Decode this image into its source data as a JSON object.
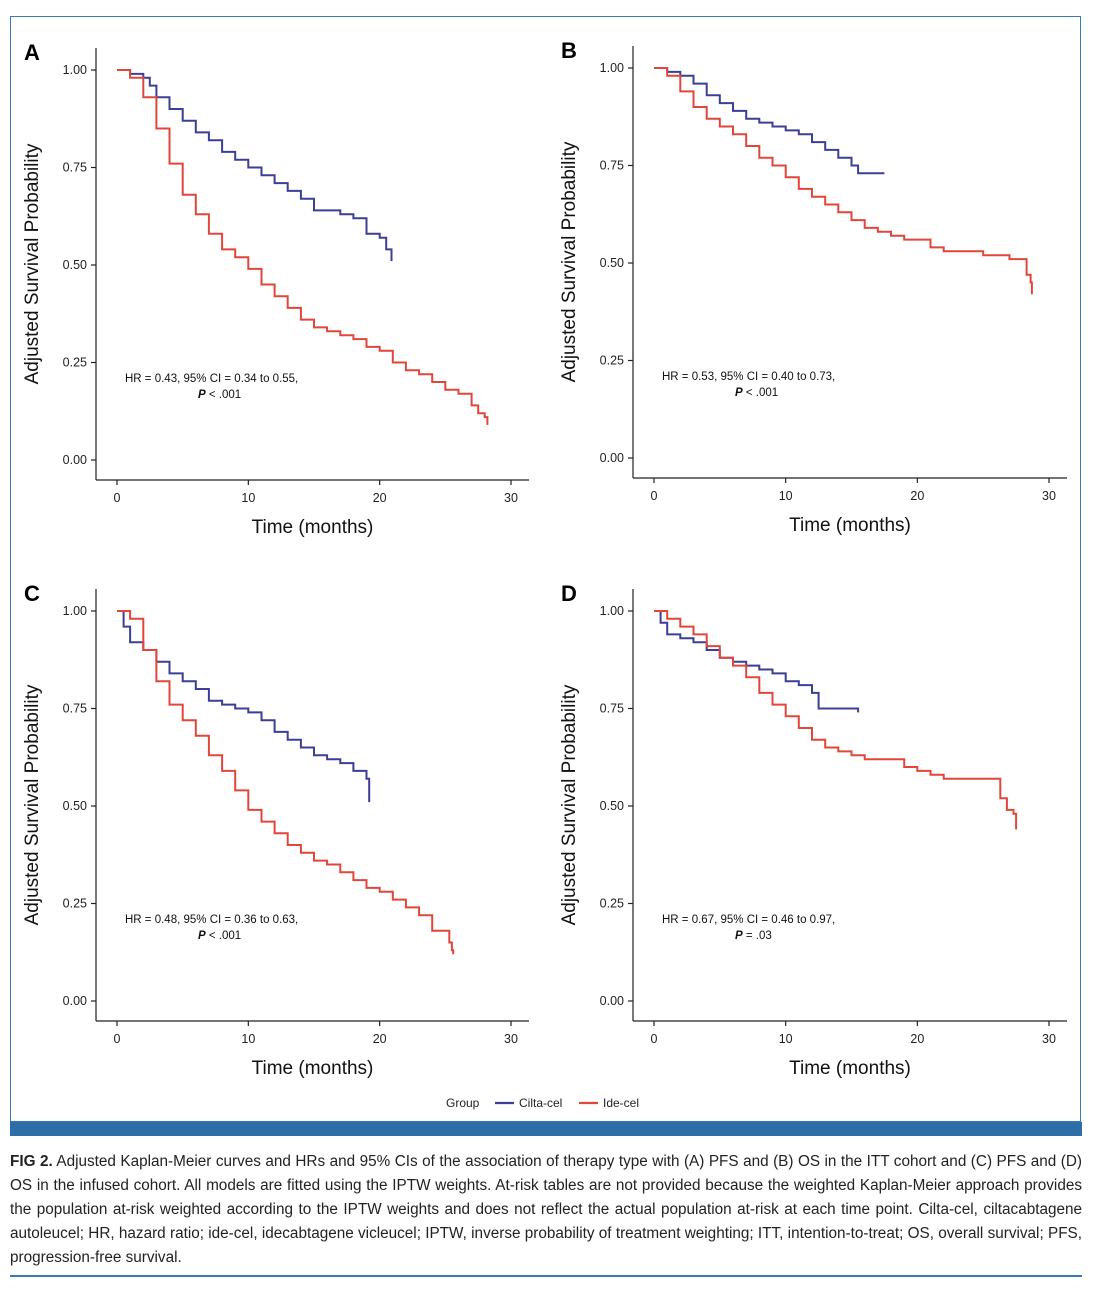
{
  "legend": {
    "title": "Group",
    "items": [
      {
        "label": "Cilta-cel",
        "color": "#3b3f95"
      },
      {
        "label": "Ide-cel",
        "color": "#e0473a"
      }
    ]
  },
  "chart_data": [
    {
      "type": "line",
      "panel": "A",
      "xlabel": "Time (months)",
      "ylabel": "Adjusted Survival Probability",
      "xlim": [
        0,
        30
      ],
      "ylim": [
        0,
        1
      ],
      "xticks": [
        0,
        10,
        20,
        30
      ],
      "yticks": [
        "0.00",
        "0.25",
        "0.50",
        "0.75",
        "1.00"
      ],
      "annotation": {
        "line1": "HR = 0.43, 95% CI = 0.34 to 0.55,",
        "p_label": "P",
        "p_value": " < .001"
      },
      "series": [
        {
          "name": "Cilta-cel",
          "color": "#3b3f95",
          "points": [
            [
              0,
              1.0
            ],
            [
              1,
              0.99
            ],
            [
              2,
              0.98
            ],
            [
              2.5,
              0.96
            ],
            [
              3,
              0.93
            ],
            [
              4,
              0.9
            ],
            [
              5,
              0.87
            ],
            [
              6,
              0.84
            ],
            [
              7,
              0.82
            ],
            [
              8,
              0.79
            ],
            [
              9,
              0.77
            ],
            [
              10,
              0.75
            ],
            [
              11,
              0.73
            ],
            [
              12,
              0.71
            ],
            [
              13,
              0.69
            ],
            [
              14,
              0.67
            ],
            [
              15,
              0.64
            ],
            [
              16,
              0.64
            ],
            [
              17,
              0.63
            ],
            [
              18,
              0.62
            ],
            [
              19,
              0.58
            ],
            [
              20,
              0.57
            ],
            [
              20.5,
              0.54
            ],
            [
              20.9,
              0.51
            ]
          ]
        },
        {
          "name": "Ide-cel",
          "color": "#e0473a",
          "points": [
            [
              0,
              1.0
            ],
            [
              1,
              0.98
            ],
            [
              2,
              0.93
            ],
            [
              3,
              0.85
            ],
            [
              4,
              0.76
            ],
            [
              5,
              0.68
            ],
            [
              6,
              0.63
            ],
            [
              7,
              0.58
            ],
            [
              8,
              0.54
            ],
            [
              9,
              0.52
            ],
            [
              10,
              0.49
            ],
            [
              11,
              0.45
            ],
            [
              12,
              0.42
            ],
            [
              13,
              0.39
            ],
            [
              14,
              0.36
            ],
            [
              15,
              0.34
            ],
            [
              16,
              0.33
            ],
            [
              17,
              0.32
            ],
            [
              18,
              0.31
            ],
            [
              19,
              0.29
            ],
            [
              20,
              0.28
            ],
            [
              21,
              0.25
            ],
            [
              22,
              0.23
            ],
            [
              23,
              0.22
            ],
            [
              24,
              0.2
            ],
            [
              25,
              0.18
            ],
            [
              26,
              0.17
            ],
            [
              27,
              0.14
            ],
            [
              27.5,
              0.12
            ],
            [
              28,
              0.11
            ],
            [
              28.2,
              0.09
            ]
          ]
        }
      ]
    },
    {
      "type": "line",
      "panel": "B",
      "xlabel": "Time (months)",
      "ylabel": "Adjusted Survival Probability",
      "xlim": [
        0,
        30
      ],
      "ylim": [
        0,
        1
      ],
      "xticks": [
        0,
        10,
        20,
        30
      ],
      "yticks": [
        "0.00",
        "0.25",
        "0.50",
        "0.75",
        "1.00"
      ],
      "annotation": {
        "line1": "HR = 0.53, 95% CI = 0.40 to 0.73,",
        "p_label": "P",
        "p_value": " < .001"
      },
      "series": [
        {
          "name": "Cilta-cel",
          "color": "#3b3f95",
          "points": [
            [
              0,
              1.0
            ],
            [
              1,
              0.99
            ],
            [
              2,
              0.98
            ],
            [
              3,
              0.96
            ],
            [
              4,
              0.93
            ],
            [
              5,
              0.91
            ],
            [
              6,
              0.89
            ],
            [
              7,
              0.87
            ],
            [
              8,
              0.86
            ],
            [
              9,
              0.85
            ],
            [
              10,
              0.84
            ],
            [
              11,
              0.83
            ],
            [
              12,
              0.81
            ],
            [
              13,
              0.79
            ],
            [
              14,
              0.77
            ],
            [
              15,
              0.75
            ],
            [
              15.5,
              0.73
            ],
            [
              16,
              0.73
            ],
            [
              17.5,
              0.73
            ]
          ]
        },
        {
          "name": "Ide-cel",
          "color": "#e0473a",
          "points": [
            [
              0,
              1.0
            ],
            [
              1,
              0.98
            ],
            [
              2,
              0.94
            ],
            [
              3,
              0.9
            ],
            [
              4,
              0.87
            ],
            [
              5,
              0.85
            ],
            [
              6,
              0.83
            ],
            [
              7,
              0.8
            ],
            [
              8,
              0.77
            ],
            [
              9,
              0.75
            ],
            [
              10,
              0.72
            ],
            [
              11,
              0.69
            ],
            [
              12,
              0.67
            ],
            [
              13,
              0.65
            ],
            [
              14,
              0.63
            ],
            [
              15,
              0.61
            ],
            [
              16,
              0.59
            ],
            [
              17,
              0.58
            ],
            [
              18,
              0.57
            ],
            [
              19,
              0.56
            ],
            [
              20,
              0.56
            ],
            [
              21,
              0.54
            ],
            [
              22,
              0.53
            ],
            [
              24,
              0.53
            ],
            [
              25,
              0.52
            ],
            [
              26,
              0.52
            ],
            [
              27,
              0.51
            ],
            [
              28,
              0.51
            ],
            [
              28.3,
              0.47
            ],
            [
              28.6,
              0.45
            ],
            [
              28.7,
              0.42
            ]
          ]
        }
      ]
    },
    {
      "type": "line",
      "panel": "C",
      "xlabel": "Time (months)",
      "ylabel": "Adjusted Survival Probability",
      "xlim": [
        0,
        30
      ],
      "ylim": [
        0,
        1
      ],
      "xticks": [
        0,
        10,
        20,
        30
      ],
      "yticks": [
        "0.00",
        "0.25",
        "0.50",
        "0.75",
        "1.00"
      ],
      "annotation": {
        "line1": "HR = 0.48, 95% CI = 0.36 to 0.63,",
        "p_label": "P",
        "p_value": " < .001"
      },
      "series": [
        {
          "name": "Cilta-cel",
          "color": "#3b3f95",
          "points": [
            [
              0,
              1.0
            ],
            [
              0.5,
              0.96
            ],
            [
              1,
              0.92
            ],
            [
              2,
              0.9
            ],
            [
              3,
              0.87
            ],
            [
              4,
              0.84
            ],
            [
              5,
              0.82
            ],
            [
              6,
              0.8
            ],
            [
              7,
              0.77
            ],
            [
              8,
              0.76
            ],
            [
              9,
              0.75
            ],
            [
              10,
              0.74
            ],
            [
              11,
              0.72
            ],
            [
              12,
              0.69
            ],
            [
              13,
              0.67
            ],
            [
              14,
              0.65
            ],
            [
              15,
              0.63
            ],
            [
              16,
              0.62
            ],
            [
              17,
              0.61
            ],
            [
              18,
              0.59
            ],
            [
              19,
              0.57
            ],
            [
              19.2,
              0.51
            ]
          ]
        },
        {
          "name": "Ide-cel",
          "color": "#e0473a",
          "points": [
            [
              0,
              1.0
            ],
            [
              1,
              0.98
            ],
            [
              2,
              0.9
            ],
            [
              3,
              0.82
            ],
            [
              4,
              0.76
            ],
            [
              5,
              0.72
            ],
            [
              6,
              0.68
            ],
            [
              7,
              0.63
            ],
            [
              8,
              0.59
            ],
            [
              9,
              0.54
            ],
            [
              10,
              0.49
            ],
            [
              11,
              0.46
            ],
            [
              12,
              0.43
            ],
            [
              13,
              0.4
            ],
            [
              14,
              0.38
            ],
            [
              15,
              0.36
            ],
            [
              16,
              0.35
            ],
            [
              17,
              0.33
            ],
            [
              18,
              0.31
            ],
            [
              19,
              0.29
            ],
            [
              20,
              0.28
            ],
            [
              21,
              0.26
            ],
            [
              22,
              0.24
            ],
            [
              23,
              0.22
            ],
            [
              24,
              0.18
            ],
            [
              25,
              0.18
            ],
            [
              25.3,
              0.15
            ],
            [
              25.5,
              0.13
            ],
            [
              25.6,
              0.12
            ]
          ]
        }
      ]
    },
    {
      "type": "line",
      "panel": "D",
      "xlabel": "Time (months)",
      "ylabel": "Adjusted Survival Probability",
      "xlim": [
        0,
        30
      ],
      "ylim": [
        0,
        1
      ],
      "xticks": [
        0,
        10,
        20,
        30
      ],
      "yticks": [
        "0.00",
        "0.25",
        "0.50",
        "0.75",
        "1.00"
      ],
      "annotation": {
        "line1": "HR = 0.67, 95% CI = 0.46 to 0.97,",
        "p_label": "P",
        "p_value": " = .03"
      },
      "series": [
        {
          "name": "Cilta-cel",
          "color": "#3b3f95",
          "points": [
            [
              0,
              1.0
            ],
            [
              0.5,
              0.97
            ],
            [
              1,
              0.94
            ],
            [
              2,
              0.93
            ],
            [
              3,
              0.92
            ],
            [
              4,
              0.9
            ],
            [
              5,
              0.88
            ],
            [
              6,
              0.87
            ],
            [
              7,
              0.86
            ],
            [
              8,
              0.85
            ],
            [
              9,
              0.84
            ],
            [
              10,
              0.82
            ],
            [
              11,
              0.81
            ],
            [
              12,
              0.79
            ],
            [
              12.5,
              0.75
            ],
            [
              13,
              0.75
            ],
            [
              15.5,
              0.74
            ]
          ]
        },
        {
          "name": "Ide-cel",
          "color": "#e0473a",
          "points": [
            [
              0,
              1.0
            ],
            [
              1,
              0.98
            ],
            [
              2,
              0.96
            ],
            [
              3,
              0.94
            ],
            [
              4,
              0.91
            ],
            [
              5,
              0.88
            ],
            [
              6,
              0.86
            ],
            [
              7,
              0.83
            ],
            [
              8,
              0.79
            ],
            [
              9,
              0.76
            ],
            [
              10,
              0.73
            ],
            [
              11,
              0.7
            ],
            [
              12,
              0.67
            ],
            [
              13,
              0.65
            ],
            [
              14,
              0.64
            ],
            [
              15,
              0.63
            ],
            [
              16,
              0.62
            ],
            [
              18,
              0.62
            ],
            [
              19,
              0.6
            ],
            [
              20,
              0.59
            ],
            [
              21,
              0.58
            ],
            [
              22,
              0.57
            ],
            [
              26,
              0.57
            ],
            [
              26.3,
              0.52
            ],
            [
              26.8,
              0.49
            ],
            [
              27.3,
              0.48
            ],
            [
              27.5,
              0.44
            ]
          ]
        }
      ]
    }
  ],
  "caption": {
    "label": "FIG 2.",
    "text": " Adjusted Kaplan-Meier curves and HRs and 95% CIs of the association of therapy type with (A) PFS and (B) OS in the ITT cohort and (C) PFS and (D) OS in the infused cohort. All models are fitted using the IPTW weights. At-risk tables are not provided because the weighted Kaplan-Meier approach provides the population at-risk weighted according to the IPTW weights and does not reflect the actual population at-risk at each time point. Cilta-cel, ciltacabtagene autoleucel; HR, hazard ratio; ide-cel, idecabtagene vicleucel; IPTW, inverse probability of treatment weighting; ITT, intention-to-treat; OS, overall survival; PFS, progression-free survival."
  }
}
